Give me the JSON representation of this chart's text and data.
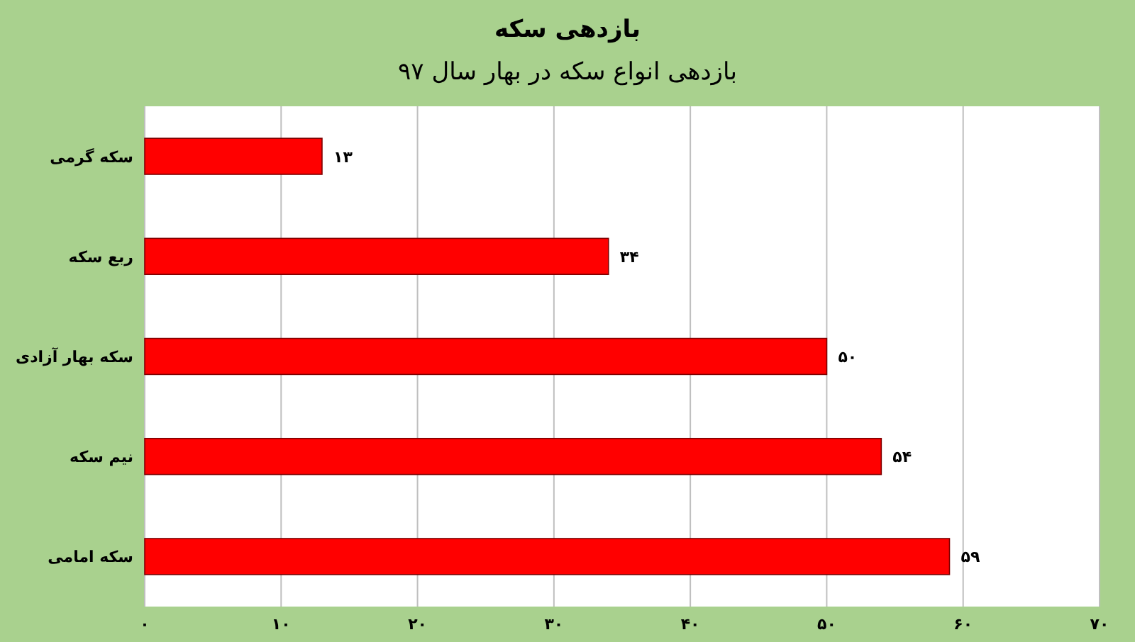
{
  "chart_data": {
    "type": "bar",
    "orientation": "horizontal",
    "title": "بازدهی سکه",
    "subtitle": "بازدهی انواع سکه در بهار سال ۹۷",
    "categories": [
      "سکه گرمی",
      "ربع سکه",
      "سکه بهار آزادی",
      "نیم سکه",
      "سکه امامی"
    ],
    "values": [
      13,
      34,
      50,
      54,
      59
    ],
    "color": "#ff0000",
    "value_labels": [
      "۱۳",
      "۳۴",
      "۵۰",
      "۵۴",
      "۵۹"
    ],
    "xlim": [
      0,
      70
    ],
    "xticks": [
      {
        "value": 0,
        "label": "۰"
      },
      {
        "value": 10,
        "label": "۱۰"
      },
      {
        "value": 20,
        "label": "۲۰"
      },
      {
        "value": 30,
        "label": "۳۰"
      },
      {
        "value": 40,
        "label": "۴۰"
      },
      {
        "value": 50,
        "label": "۵۰"
      },
      {
        "value": 60,
        "label": "۶۰"
      },
      {
        "value": 70,
        "label": "۷۰"
      }
    ],
    "grid": "x"
  }
}
